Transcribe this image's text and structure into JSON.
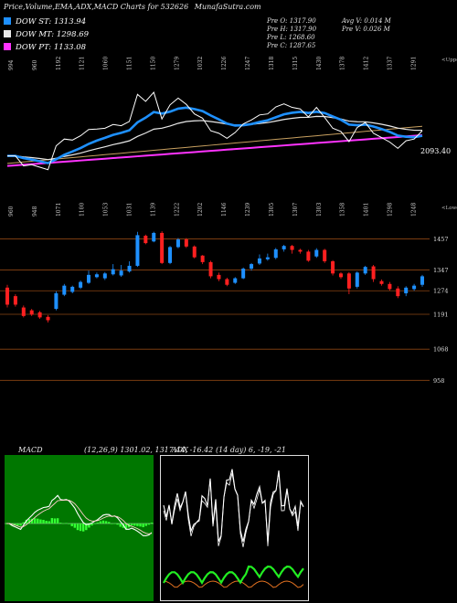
{
  "header": {
    "title": "Price,Volume,EMA,ADX,MACD Charts for 532626",
    "site": "MunafaSutra.com"
  },
  "legend": [
    {
      "label": "DOW ST: 1313.94",
      "color": "#1e90ff"
    },
    {
      "label": "DOW MT: 1298.69",
      "color": "#e8e8e8"
    },
    {
      "label": "DOW PT: 1133.08",
      "color": "#ff33ff"
    }
  ],
  "stats": {
    "open": "Pre  O: 1317.90",
    "high": "Pre  H: 1317.90",
    "low": "Pre  L: 1268.60",
    "close": "Pre  C: 1287.65",
    "avg_volume": "Avg V: 0.014  M",
    "prev_volume": "Pre  V: 0.026  M"
  },
  "colors": {
    "bg": "#000000",
    "up": "#1e90ff",
    "down": "#ff2020",
    "ema_short": "#1e90ff",
    "ema_pt": "#ff33ff",
    "grid": "#8b4513",
    "macd_bg": "#007700",
    "adx_green": "#22ee22",
    "adx_orange": "#e07020"
  },
  "chart_data": [
    {
      "type": "line",
      "panel": "ema",
      "top_labels": [
        "994",
        "960",
        "1192",
        "1121",
        "1060",
        "1151",
        "1150",
        "1279",
        "1032",
        "1226",
        "1247",
        "1318",
        "1315",
        "1430",
        "1378",
        "1412",
        "1337",
        "1291"
      ],
      "side_label": "<Upper",
      "last_value_label": "2093.40",
      "series": [
        {
          "name": "DOW ST",
          "role": "short EMA"
        },
        {
          "name": "DOW MT",
          "role": "medium EMA"
        },
        {
          "name": "DOW PT",
          "role": "long EMA"
        }
      ]
    },
    {
      "type": "candlestick",
      "panel": "price",
      "top_labels": [
        "960",
        "948",
        "1071",
        "1100",
        "1053",
        "1031",
        "1139",
        "1222",
        "1202",
        "1146",
        "1239",
        "1305",
        "1307",
        "1303",
        "1358",
        "1401",
        "1298",
        "1248"
      ],
      "side_label": "<Lower",
      "y_ticks": [
        "1457",
        "1347",
        "1274",
        "1191",
        "1068",
        "958"
      ],
      "candles": [
        {
          "o": 1285,
          "c": 1225,
          "h": 1295,
          "l": 1215
        },
        {
          "o": 1255,
          "c": 1225,
          "h": 1262,
          "l": 1218
        },
        {
          "o": 1215,
          "c": 1185,
          "h": 1222,
          "l": 1180
        },
        {
          "o": 1205,
          "c": 1190,
          "h": 1210,
          "l": 1185
        },
        {
          "o": 1198,
          "c": 1180,
          "h": 1203,
          "l": 1175
        },
        {
          "o": 1182,
          "c": 1170,
          "h": 1188,
          "l": 1162
        },
        {
          "o": 1210,
          "c": 1265,
          "h": 1272,
          "l": 1205
        },
        {
          "o": 1260,
          "c": 1292,
          "h": 1298,
          "l": 1255
        },
        {
          "o": 1270,
          "c": 1288,
          "h": 1292,
          "l": 1265
        },
        {
          "o": 1285,
          "c": 1305,
          "h": 1310,
          "l": 1280
        },
        {
          "o": 1302,
          "c": 1330,
          "h": 1345,
          "l": 1298
        },
        {
          "o": 1322,
          "c": 1332,
          "h": 1338,
          "l": 1318
        },
        {
          "o": 1318,
          "c": 1335,
          "h": 1340,
          "l": 1312
        },
        {
          "o": 1332,
          "c": 1350,
          "h": 1368,
          "l": 1328
        },
        {
          "o": 1328,
          "c": 1345,
          "h": 1365,
          "l": 1323
        },
        {
          "o": 1342,
          "c": 1362,
          "h": 1378,
          "l": 1338
        },
        {
          "o": 1362,
          "c": 1470,
          "h": 1482,
          "l": 1358
        },
        {
          "o": 1468,
          "c": 1442,
          "h": 1472,
          "l": 1438
        },
        {
          "o": 1448,
          "c": 1478,
          "h": 1482,
          "l": 1445
        },
        {
          "o": 1478,
          "c": 1372,
          "h": 1484,
          "l": 1368
        },
        {
          "o": 1372,
          "c": 1428,
          "h": 1432,
          "l": 1368
        },
        {
          "o": 1428,
          "c": 1455,
          "h": 1460,
          "l": 1424
        },
        {
          "o": 1455,
          "c": 1430,
          "h": 1460,
          "l": 1425
        },
        {
          "o": 1430,
          "c": 1392,
          "h": 1434,
          "l": 1388
        },
        {
          "o": 1398,
          "c": 1375,
          "h": 1400,
          "l": 1368
        },
        {
          "o": 1375,
          "c": 1325,
          "h": 1380,
          "l": 1318
        },
        {
          "o": 1330,
          "c": 1315,
          "h": 1338,
          "l": 1308
        },
        {
          "o": 1315,
          "c": 1295,
          "h": 1320,
          "l": 1290
        },
        {
          "o": 1302,
          "c": 1318,
          "h": 1322,
          "l": 1298
        },
        {
          "o": 1318,
          "c": 1352,
          "h": 1356,
          "l": 1315
        },
        {
          "o": 1352,
          "c": 1368,
          "h": 1372,
          "l": 1345
        },
        {
          "o": 1370,
          "c": 1388,
          "h": 1402,
          "l": 1365
        },
        {
          "o": 1385,
          "c": 1392,
          "h": 1405,
          "l": 1380
        },
        {
          "o": 1390,
          "c": 1420,
          "h": 1425,
          "l": 1385
        },
        {
          "o": 1420,
          "c": 1432,
          "h": 1436,
          "l": 1412
        },
        {
          "o": 1432,
          "c": 1418,
          "h": 1436,
          "l": 1405
        },
        {
          "o": 1418,
          "c": 1412,
          "h": 1422,
          "l": 1405
        },
        {
          "o": 1412,
          "c": 1380,
          "h": 1418,
          "l": 1376
        },
        {
          "o": 1395,
          "c": 1418,
          "h": 1424,
          "l": 1390
        },
        {
          "o": 1418,
          "c": 1378,
          "h": 1422,
          "l": 1372
        },
        {
          "o": 1378,
          "c": 1335,
          "h": 1382,
          "l": 1328
        },
        {
          "o": 1335,
          "c": 1322,
          "h": 1340,
          "l": 1316
        },
        {
          "o": 1335,
          "c": 1282,
          "h": 1340,
          "l": 1262
        },
        {
          "o": 1288,
          "c": 1338,
          "h": 1342,
          "l": 1282
        },
        {
          "o": 1335,
          "c": 1358,
          "h": 1362,
          "l": 1330
        },
        {
          "o": 1360,
          "c": 1315,
          "h": 1365,
          "l": 1305
        },
        {
          "o": 1308,
          "c": 1298,
          "h": 1314,
          "l": 1292
        },
        {
          "o": 1298,
          "c": 1280,
          "h": 1305,
          "l": 1275
        },
        {
          "o": 1282,
          "c": 1255,
          "h": 1290,
          "l": 1248
        },
        {
          "o": 1265,
          "c": 1285,
          "h": 1290,
          "l": 1255
        },
        {
          "o": 1280,
          "c": 1292,
          "h": 1298,
          "l": 1274
        },
        {
          "o": 1295,
          "c": 1325,
          "h": 1330,
          "l": 1288
        }
      ]
    },
    {
      "type": "area",
      "panel": "macd",
      "label": "MACD",
      "params": "(12,26,9) 1301.02,  1317.44,  -16.42"
    },
    {
      "type": "line",
      "panel": "adx",
      "label": "ADX",
      "params": "(14 day) 6,  -19,  -21"
    }
  ]
}
